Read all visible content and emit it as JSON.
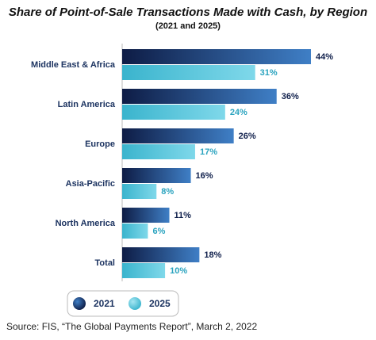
{
  "chart_data": {
    "type": "barh",
    "title": "Share of Point-of-Sale Transactions Made with Cash, by Region",
    "subtitle": "(2021 and 2025)",
    "categories": [
      "Middle East & Africa",
      "Latin America",
      "Europe",
      "Asia-Pacific",
      "North America",
      "Total"
    ],
    "series": [
      {
        "name": "2021",
        "color": "#3f7fc6",
        "label_color": "#0f1f4b",
        "values": [
          44,
          36,
          26,
          16,
          11,
          18
        ],
        "value_labels": [
          "44%",
          "36%",
          "26%",
          "16%",
          "11%",
          "18%"
        ]
      },
      {
        "name": "2025",
        "color": "#7fd8ea",
        "label_color": "#2aa3bf",
        "values": [
          31,
          24,
          17,
          8,
          6,
          10
        ],
        "value_labels": [
          "31%",
          "24%",
          "17%",
          "8%",
          "6%",
          "10%"
        ]
      }
    ],
    "legend": "bottom",
    "source": "Source: FIS, “The Global Payments Report”, March 2, 2022"
  }
}
